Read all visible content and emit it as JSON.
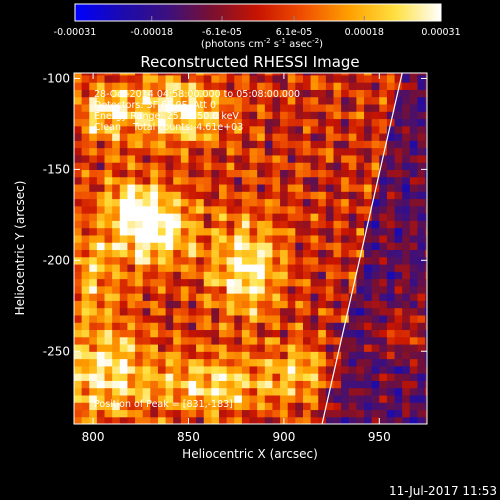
{
  "chart_data": {
    "type": "heatmap",
    "title": "Reconstructed RHESSI Image",
    "xlabel": "Heliocentric X (arcsec)",
    "ylabel": "Heliocentric Y (arcsec)",
    "xlim": [
      790,
      975
    ],
    "ylim": [
      -290,
      -97
    ],
    "xticks": [
      800,
      850,
      900,
      950
    ],
    "yticks": [
      -100,
      -150,
      -200,
      -250
    ],
    "grid": false,
    "colorbar": {
      "range": [
        -0.00031,
        0.00031
      ],
      "tick_values": [
        -0.00031,
        -0.00018,
        -6.1e-05,
        6.1e-05,
        0.00018,
        0.00031
      ],
      "tick_labels": [
        "-0.00031",
        "-0.00018",
        "-6.1e-05",
        "6.1e-05",
        "0.00018",
        "0.00031"
      ],
      "units_label": "(photons cm",
      "units_exp1": "-2",
      "units_mid": " s",
      "units_exp2": "-1",
      "units_mid2": " asec",
      "units_exp3": "-2",
      "units_end": ")",
      "colors": [
        "#0000ff",
        "#1a0ab0",
        "#3a1080",
        "#7a1030",
        "#c81400",
        "#f05000",
        "#ffa000",
        "#ffe040",
        "#ffffff"
      ]
    },
    "annotations": [
      "28-Oct-2014 04:58:00.000 to 05:08:00.000",
      "Detectors: 3F 6F 9F, Att 0",
      "Energy Range: 25.0 - 50.0 keV",
      "Clean    Total counts: 4.61e+03"
    ],
    "peak_label": "Position of Peak = [831,-183]",
    "peak": [
      831,
      -183
    ],
    "sources": [
      {
        "x": 831,
        "y": -183,
        "amp": 1.0,
        "sx": 14,
        "sy": 14
      },
      {
        "x": 820,
        "y": -168,
        "amp": 0.55,
        "sx": 10,
        "sy": 9
      },
      {
        "x": 843,
        "y": -118,
        "amp": 0.8,
        "sx": 17,
        "sy": 12
      },
      {
        "x": 806,
        "y": -118,
        "amp": 0.6,
        "sx": 10,
        "sy": 11
      },
      {
        "x": 880,
        "y": -203,
        "amp": 0.75,
        "sx": 13,
        "sy": 19
      },
      {
        "x": 805,
        "y": -260,
        "amp": 0.65,
        "sx": 16,
        "sy": 20
      },
      {
        "x": 862,
        "y": -268,
        "amp": 0.62,
        "sx": 24,
        "sy": 11
      },
      {
        "x": 908,
        "y": -262,
        "amp": 0.5,
        "sx": 10,
        "sy": 10
      },
      {
        "x": 800,
        "y": -205,
        "amp": 0.45,
        "sx": 9,
        "sy": 16
      },
      {
        "x": 962,
        "y": -240,
        "amp": 0.35,
        "sx": 9,
        "sy": 9
      }
    ],
    "limb_line": {
      "x": [
        920,
        962
      ],
      "y": [
        -290,
        -97
      ]
    }
  },
  "footer": {
    "timestamp": "11-Jul-2017 11:53"
  }
}
